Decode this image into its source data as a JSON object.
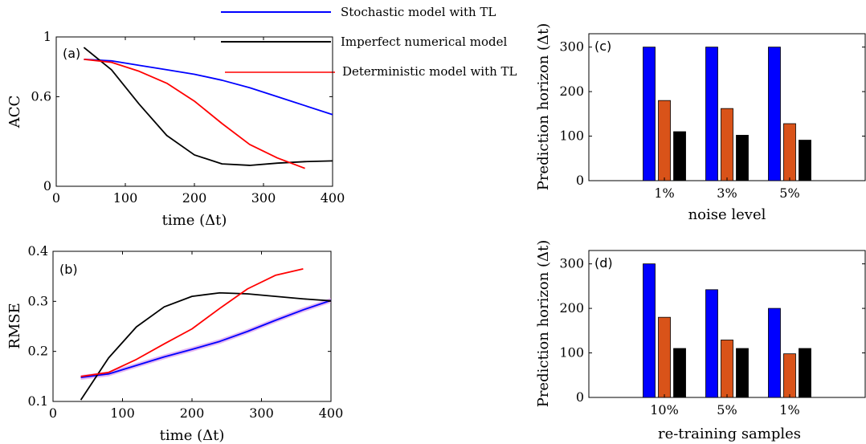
{
  "legend": [
    {
      "label": "Stochastic model with TL",
      "color": "#0000ff"
    },
    {
      "label": "Imperfect numerical model",
      "color": "#000000"
    },
    {
      "label": "Deterministic model with TL",
      "color": "#ff0000"
    }
  ],
  "colors": {
    "stochastic": "#0000ff",
    "imperfect": "#000000",
    "deterministic": "#ff0000",
    "bar_orange": "#d95319",
    "band": "#d07ce8"
  },
  "chart_data": [
    {
      "type": "line",
      "panel_label": "(a)",
      "xlabel": "time (Δt)",
      "ylabel": "ACC",
      "xlim": [
        0,
        400
      ],
      "ylim": [
        0,
        1
      ],
      "xticks": [
        0,
        100,
        200,
        300,
        400
      ],
      "yticks": [
        0,
        0.6,
        1
      ],
      "ytick_labels": [
        "0",
        "0.6",
        "1"
      ],
      "series": [
        {
          "name": "Stochastic model with TL",
          "color": "#0000ff",
          "x": [
            40,
            80,
            120,
            160,
            200,
            240,
            280,
            320,
            360,
            400
          ],
          "y": [
            0.85,
            0.84,
            0.81,
            0.78,
            0.75,
            0.71,
            0.66,
            0.6,
            0.54,
            0.48
          ]
        },
        {
          "name": "Imperfect numerical model",
          "color": "#000000",
          "x": [
            40,
            80,
            120,
            160,
            200,
            240,
            280,
            320,
            360,
            400
          ],
          "y": [
            0.93,
            0.78,
            0.55,
            0.34,
            0.21,
            0.15,
            0.14,
            0.155,
            0.165,
            0.17
          ]
        },
        {
          "name": "Deterministic model with TL",
          "color": "#ff0000",
          "x": [
            40,
            80,
            120,
            160,
            200,
            240,
            280,
            320,
            360
          ],
          "y": [
            0.85,
            0.83,
            0.77,
            0.69,
            0.57,
            0.42,
            0.28,
            0.19,
            0.12
          ]
        }
      ]
    },
    {
      "type": "line",
      "panel_label": "(b)",
      "xlabel": "time (Δt)",
      "ylabel": "RMSE",
      "xlim": [
        0,
        400
      ],
      "ylim": [
        0.1,
        0.4
      ],
      "xticks": [
        0,
        100,
        200,
        300,
        400
      ],
      "yticks": [
        0.1,
        0.2,
        0.3,
        0.4
      ],
      "ytick_labels": [
        "0.1",
        "0.2",
        "0.3",
        "0.4"
      ],
      "series": [
        {
          "name": "Stochastic model with TL",
          "color": "#0000ff",
          "x": [
            40,
            80,
            120,
            160,
            200,
            240,
            280,
            320,
            360,
            400
          ],
          "y": [
            0.148,
            0.155,
            0.172,
            0.189,
            0.204,
            0.22,
            0.24,
            0.262,
            0.283,
            0.302
          ]
        },
        {
          "name": "Imperfect numerical model",
          "color": "#000000",
          "x": [
            40,
            80,
            120,
            160,
            200,
            240,
            280,
            320,
            360,
            400
          ],
          "y": [
            0.103,
            0.187,
            0.249,
            0.289,
            0.31,
            0.317,
            0.315,
            0.31,
            0.305,
            0.301
          ]
        },
        {
          "name": "Deterministic model with TL",
          "color": "#ff0000",
          "x": [
            40,
            80,
            120,
            160,
            200,
            240,
            280,
            320,
            360
          ],
          "y": [
            0.15,
            0.158,
            0.184,
            0.215,
            0.245,
            0.286,
            0.325,
            0.352,
            0.365
          ]
        }
      ]
    },
    {
      "type": "bar",
      "panel_label": "(c)",
      "xlabel": "noise level",
      "ylabel": "Prediction horizon (Δt)",
      "categories": [
        "1%",
        "3%",
        "5%"
      ],
      "ylim": [
        0,
        330
      ],
      "yticks": [
        0,
        100,
        200,
        300
      ],
      "series": [
        {
          "name": "Stochastic model with TL",
          "color": "#0000ff",
          "values": [
            300,
            300,
            300
          ]
        },
        {
          "name": "Deterministic model with TL",
          "color": "#d95319",
          "values": [
            180,
            162,
            128
          ]
        },
        {
          "name": "Imperfect numerical model",
          "color": "#000000",
          "values": [
            110,
            102,
            91
          ]
        }
      ]
    },
    {
      "type": "bar",
      "panel_label": "(d)",
      "xlabel": "re-training samples",
      "ylabel": "Prediction horizon (Δt)",
      "categories": [
        "10%",
        "5%",
        "1%"
      ],
      "ylim": [
        0,
        330
      ],
      "yticks": [
        0,
        100,
        200,
        300
      ],
      "series": [
        {
          "name": "Stochastic model with TL",
          "color": "#0000ff",
          "values": [
            300,
            242,
            200
          ]
        },
        {
          "name": "Deterministic model with TL",
          "color": "#d95319",
          "values": [
            180,
            129,
            98
          ]
        },
        {
          "name": "Imperfect numerical model",
          "color": "#000000",
          "values": [
            110,
            110,
            110
          ]
        }
      ]
    }
  ]
}
